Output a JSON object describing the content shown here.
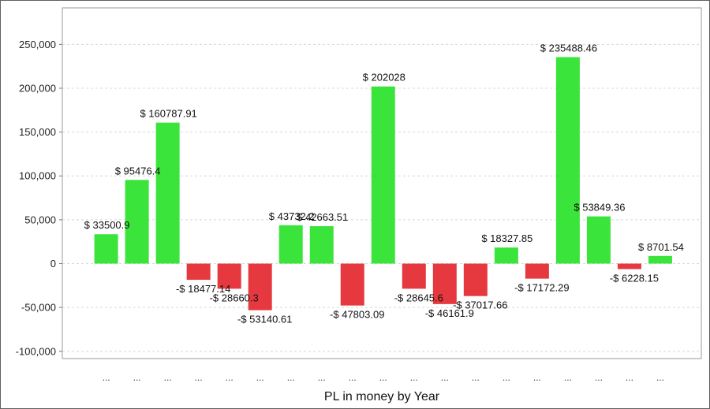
{
  "chart_data": {
    "type": "bar",
    "xlabel": "PL in money by Year",
    "ylabel": "",
    "ylim": [
      -100000,
      250000
    ],
    "yticks": [
      -100000,
      -50000,
      0,
      50000,
      100000,
      150000,
      200000,
      250000
    ],
    "ytick_labels": [
      "-100,000",
      "-50,000",
      "0",
      "50,000",
      "100,000",
      "150,000",
      "200,000",
      "250,000"
    ],
    "grid": true,
    "positive_color": "#3be43b",
    "negative_color": "#e6393f",
    "categories": [
      "...",
      "...",
      "...",
      "...",
      "...",
      "...",
      "...",
      "...",
      "...",
      "...",
      "...",
      "...",
      "...",
      "...",
      "...",
      "...",
      "...",
      "...",
      "..."
    ],
    "values": [
      33500.9,
      95476.4,
      160787.91,
      -18477.14,
      -28660.3,
      -53140.61,
      43732.2,
      42663.51,
      -47803.09,
      202028,
      -28645.6,
      -46161.9,
      -37017.66,
      18327.85,
      -17172.29,
      235488.46,
      53849.36,
      -6228.15,
      8701.54
    ],
    "data_labels": [
      "$ 33500.9",
      "$ 95476.4",
      "$ 160787.91",
      "-$ 18477.14",
      "-$ 28660.3",
      "-$ 53140.61",
      "$ 43732.2",
      "$ 42663.51",
      "-$ 47803.09",
      "$ 202028",
      "-$ 28645.6",
      "-$ 46161.9",
      "-$ 37017.66",
      "$ 18327.85",
      "-$ 17172.29",
      "$ 235488.46",
      "$ 53849.36",
      "-$ 6228.15",
      "$ 8701.54"
    ]
  }
}
